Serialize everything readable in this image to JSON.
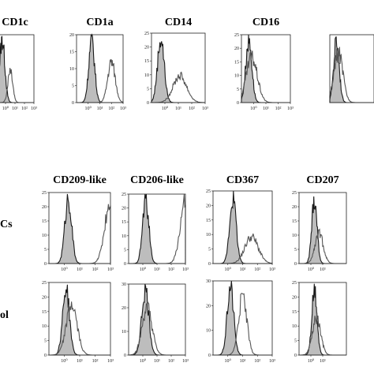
{
  "row_labels": [
    "Cs",
    "ol"
  ],
  "chart_data": [
    {
      "type": "area",
      "title": "CD1c",
      "ylim": [
        0,
        20
      ],
      "yticks": [],
      "xlim": [
        0.1,
        1000
      ],
      "xscale": "log",
      "xticks": [
        "10⁰",
        "10¹",
        "10²",
        "10³"
      ],
      "series": [
        {
          "name": "",
          "role": "control",
          "peak": 0.45,
          "sigma": 0.28,
          "height": 1.0
        },
        {
          "name": "",
          "role": "stain",
          "peak": 3.2,
          "sigma": 0.25,
          "height": 0.55
        }
      ]
    },
    {
      "type": "area",
      "title": "CD1a",
      "ylim": [
        0,
        20
      ],
      "yticks": [
        "0",
        "5",
        "10",
        "15",
        "20"
      ],
      "xlim": [
        0.1,
        1000
      ],
      "xscale": "log",
      "xticks": [
        "10⁰",
        "10¹",
        "10²",
        "10³"
      ],
      "series": [
        {
          "name": "",
          "role": "control",
          "peak": 2.0,
          "sigma": 0.25,
          "height": 1.0
        },
        {
          "name": "",
          "role": "stain",
          "peak": 100,
          "sigma": 0.32,
          "height": 0.65
        }
      ]
    },
    {
      "type": "area",
      "title": "CD14",
      "ylim": [
        0,
        25
      ],
      "yticks": [
        "0",
        "5",
        "10",
        "15",
        "20",
        "25"
      ],
      "xlim": [
        0.1,
        1000
      ],
      "xscale": "log",
      "xticks": [
        "10⁰",
        "10¹",
        "10²",
        "10³"
      ],
      "series": [
        {
          "name": "",
          "role": "control",
          "peak": 0.5,
          "sigma": 0.25,
          "height": 1.0
        },
        {
          "name": "",
          "role": "stain",
          "peak": 13,
          "sigma": 0.5,
          "height": 0.42
        }
      ]
    },
    {
      "type": "area",
      "title": "CD16",
      "ylim": [
        0,
        25
      ],
      "yticks": [
        "0",
        "5",
        "10",
        "15",
        "20",
        "25"
      ],
      "xlim": [
        0.1,
        1000
      ],
      "xscale": "log",
      "xticks": [
        "10⁰",
        "10¹",
        "10²",
        "10³"
      ],
      "series": [
        {
          "name": "",
          "role": "control",
          "peak": 0.4,
          "sigma": 0.25,
          "height": 1.0
        },
        {
          "name": "",
          "role": "stain",
          "peak": 0.7,
          "sigma": 0.45,
          "height": 0.72
        }
      ]
    },
    {
      "type": "area",
      "title": "",
      "ylim": [
        0,
        25
      ],
      "yticks": [],
      "xlim": [
        0.1,
        1000
      ],
      "xscale": "log",
      "xticks": [],
      "series": [
        {
          "name": "",
          "role": "control",
          "peak": 0.4,
          "sigma": 0.25,
          "height": 1.0
        },
        {
          "name": "",
          "role": "stain",
          "peak": 0.6,
          "sigma": 0.4,
          "height": 0.8
        }
      ]
    },
    {
      "type": "area",
      "title": "CD209-like",
      "ylim": [
        0,
        25
      ],
      "yticks": [
        "0",
        "5",
        "10",
        "15",
        "20",
        "25"
      ],
      "xlim": [
        0.1,
        1000
      ],
      "xscale": "log",
      "xticks": [
        "10⁰",
        "10¹",
        "10²",
        "10³"
      ],
      "series": [
        {
          "name": "",
          "role": "control",
          "peak": 1.8,
          "sigma": 0.22,
          "height": 1.0
        },
        {
          "name": "",
          "role": "stain",
          "peak": 950,
          "sigma": 0.35,
          "height": 0.95
        }
      ]
    },
    {
      "type": "area",
      "title": "CD206-like",
      "ylim": [
        0,
        25
      ],
      "yticks": [
        "0",
        "5",
        "10",
        "15",
        "20",
        "25"
      ],
      "xlim": [
        0.1,
        1000
      ],
      "xscale": "log",
      "xticks": [
        "10⁰",
        "10¹",
        "10²",
        "10³"
      ],
      "series": [
        {
          "name": "",
          "role": "control",
          "peak": 1.6,
          "sigma": 0.22,
          "height": 1.0
        },
        {
          "name": "",
          "role": "stain",
          "peak": 950,
          "sigma": 0.35,
          "height": 0.95
        }
      ]
    },
    {
      "type": "area",
      "title": "CD367",
      "ylim": [
        0,
        25
      ],
      "yticks": [
        "0",
        "5",
        "10",
        "15",
        "20",
        "25"
      ],
      "xlim": [
        0.1,
        1000
      ],
      "xscale": "log",
      "xticks": [
        "10⁰",
        "10¹",
        "10²",
        "10³"
      ],
      "series": [
        {
          "name": "",
          "role": "control",
          "peak": 2.2,
          "sigma": 0.22,
          "height": 1.0
        },
        {
          "name": "",
          "role": "stain",
          "peak": 40,
          "sigma": 0.45,
          "height": 0.4
        }
      ]
    },
    {
      "type": "area",
      "title": "CD207",
      "ylim": [
        0,
        25
      ],
      "yticks": [
        "0",
        "5",
        "10",
        "15",
        "20",
        "25"
      ],
      "xlim": [
        0.1,
        1000
      ],
      "xscale": "log",
      "xticks": [
        "10⁰",
        "10¹"
      ],
      "series": [
        {
          "name": "",
          "role": "control",
          "peak": 2.0,
          "sigma": 0.22,
          "height": 1.0
        },
        {
          "name": "",
          "role": "stain",
          "peak": 5,
          "sigma": 0.35,
          "height": 0.45
        }
      ]
    },
    {
      "type": "area",
      "title": "",
      "ylim": [
        0,
        25
      ],
      "yticks": [
        "0",
        "5",
        "10",
        "15",
        "20",
        "25"
      ],
      "xlim": [
        0.1,
        1000
      ],
      "xscale": "log",
      "xticks": [
        "10⁰",
        "10¹",
        "10²",
        "10³"
      ],
      "series": [
        {
          "name": "",
          "role": "control",
          "peak": 1.3,
          "sigma": 0.22,
          "height": 1.0
        },
        {
          "name": "",
          "role": "stain",
          "peak": 3.0,
          "sigma": 0.35,
          "height": 0.75
        }
      ]
    },
    {
      "type": "area",
      "title": "",
      "ylim": [
        0,
        30
      ],
      "yticks": [
        "0",
        "10",
        "20",
        "30"
      ],
      "xlim": [
        0.1,
        1000
      ],
      "xscale": "log",
      "xticks": [
        "10⁰",
        "10¹",
        "10²",
        "10³"
      ],
      "series": [
        {
          "name": "",
          "role": "control",
          "peak": 1.5,
          "sigma": 0.25,
          "height": 1.0
        },
        {
          "name": "",
          "role": "stain",
          "peak": 2.0,
          "sigma": 0.35,
          "height": 0.72
        }
      ]
    },
    {
      "type": "area",
      "title": "",
      "ylim": [
        0,
        30
      ],
      "yticks": [
        "0",
        "10",
        "20",
        "30"
      ],
      "xlim": [
        0.1,
        1000
      ],
      "xscale": "log",
      "xticks": [
        "10⁰",
        "10¹",
        "10²",
        "10³"
      ],
      "series": [
        {
          "name": "",
          "role": "control",
          "peak": 1.5,
          "sigma": 0.22,
          "height": 1.0
        },
        {
          "name": "",
          "role": "stain",
          "peak": 10,
          "sigma": 0.28,
          "height": 0.85
        }
      ]
    },
    {
      "type": "area",
      "title": "",
      "ylim": [
        0,
        25
      ],
      "yticks": [
        "0",
        "5",
        "10",
        "15",
        "20",
        "25"
      ],
      "xlim": [
        0.1,
        1000
      ],
      "xscale": "log",
      "xticks": [
        "10⁰",
        "10¹"
      ],
      "series": [
        {
          "name": "",
          "role": "control",
          "peak": 2.0,
          "sigma": 0.22,
          "height": 1.0
        },
        {
          "name": "",
          "role": "stain",
          "peak": 3.0,
          "sigma": 0.35,
          "height": 0.55
        }
      ]
    }
  ]
}
